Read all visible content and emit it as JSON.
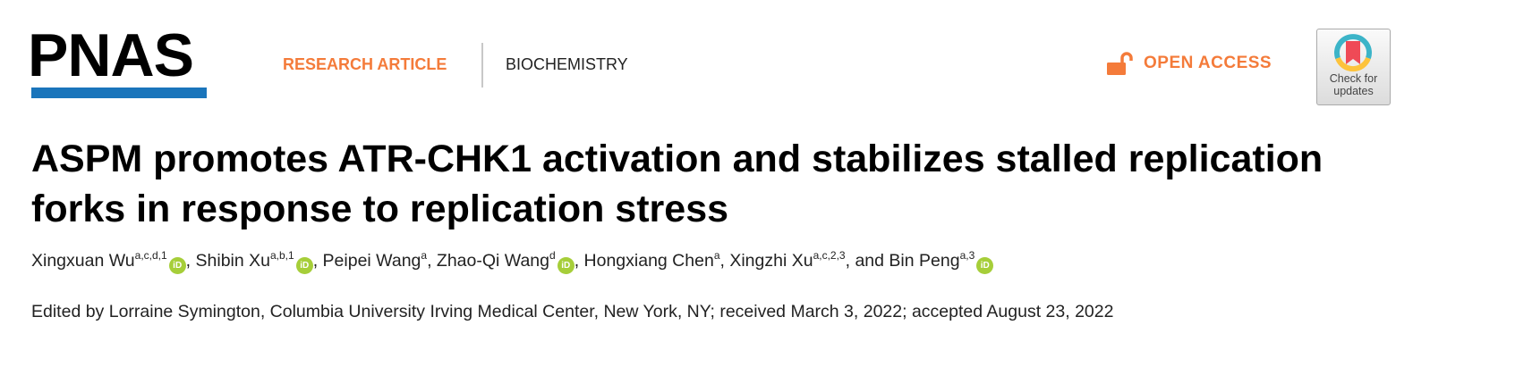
{
  "header": {
    "logo": "PNAS",
    "brand_color": "#1a75bb",
    "article_type": "RESEARCH ARTICLE",
    "subject": "BIOCHEMISTRY",
    "open_access": "OPEN ACCESS",
    "accent_color": "#f47b3a",
    "check_updates": {
      "line1": "Check for",
      "line2": "updates"
    }
  },
  "article": {
    "title": "ASPM promotes ATR-CHK1 activation and stabilizes stalled replication forks in response to replication stress",
    "authors": [
      {
        "name": "Xingxuan Wu",
        "affil": "a,c,d,1",
        "orcid": true
      },
      {
        "name": "Shibin Xu",
        "affil": "a,b,1",
        "orcid": true
      },
      {
        "name": "Peipei Wang",
        "affil": "a",
        "orcid": false
      },
      {
        "name": "Zhao-Qi Wang",
        "affil": "d",
        "orcid": true
      },
      {
        "name": "Hongxiang Chen",
        "affil": "a",
        "orcid": false
      },
      {
        "name": "Xingzhi Xu",
        "affil": "a,c,2,3",
        "orcid": false
      },
      {
        "name": "Bin Peng",
        "affil": "a,3",
        "orcid": true
      }
    ],
    "and_word": "and",
    "orcid_label": "iD",
    "edited_by": "Edited by Lorraine Symington, Columbia University Irving Medical Center, New York, NY; received March 3, 2022; accepted August 23, 2022"
  }
}
